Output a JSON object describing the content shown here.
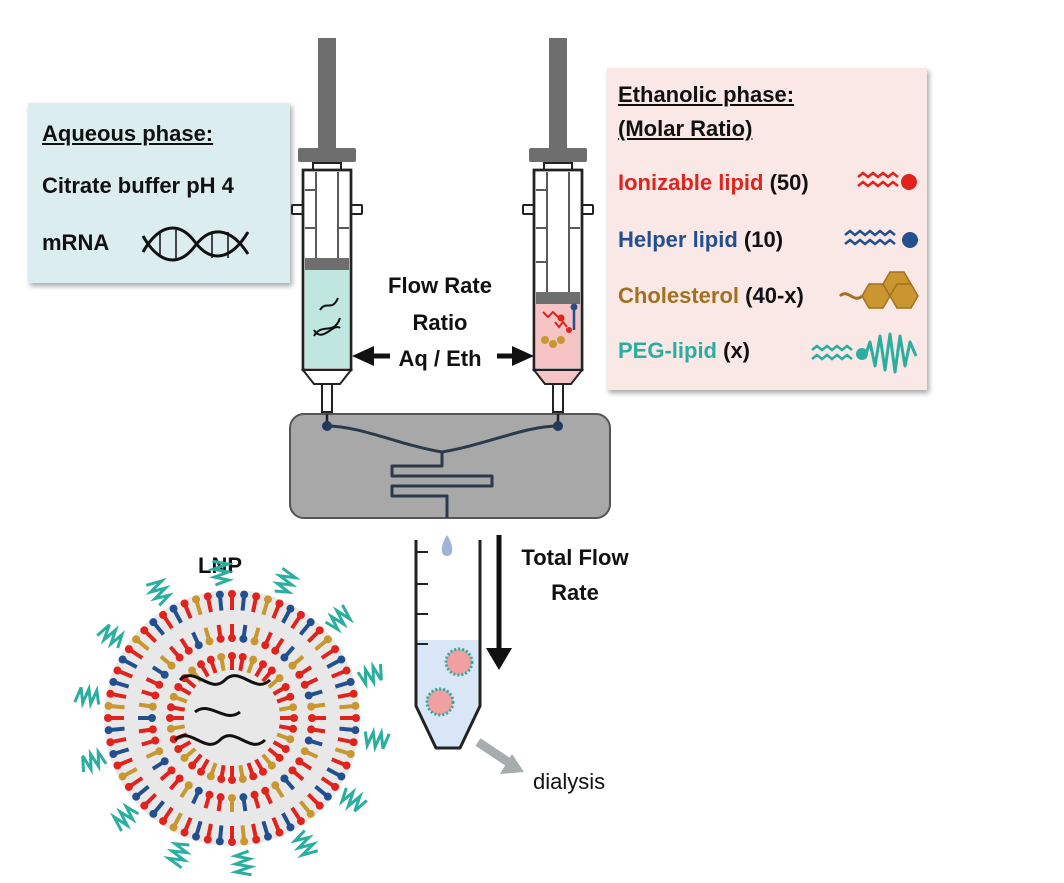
{
  "aqueous": {
    "title": "Aqueous phase:",
    "buffer": "Citrate buffer pH 4",
    "mrna": "mRNA"
  },
  "ethanolic": {
    "title": "Ethanolic phase:",
    "subtitle": "(Molar Ratio)",
    "components": [
      {
        "name": "Ionizable lipid",
        "ratio": "(50)",
        "color": "#e0231c",
        "icon": "ionizable-lipid-icon"
      },
      {
        "name": "Helper lipid",
        "ratio": "(10)",
        "color": "#244f8e",
        "icon": "helper-lipid-icon"
      },
      {
        "name": "Cholesterol",
        "ratio": "(40-x)",
        "color": "#a2701e",
        "icon": "cholesterol-icon"
      },
      {
        "name": "PEG-lipid",
        "ratio": "(x)",
        "color": "#2aaea0",
        "icon": "peg-lipid-icon"
      }
    ]
  },
  "flow_rate_ratio": {
    "line1": "Flow Rate",
    "line2": "Ratio",
    "line3": "Aq / Eth"
  },
  "total_flow_rate": {
    "line1": "Total Flow",
    "line2": "Rate"
  },
  "lnp_label": "LNP",
  "dialysis_label": "dialysis",
  "colors": {
    "syringe_gray": "#6e6e6e",
    "chip_fill": "#a8a8a8",
    "aqueous_fill": "#bfe6df",
    "ethanolic_fill": "#f6c4c4",
    "tube_liquid": "#d8e6f5"
  }
}
